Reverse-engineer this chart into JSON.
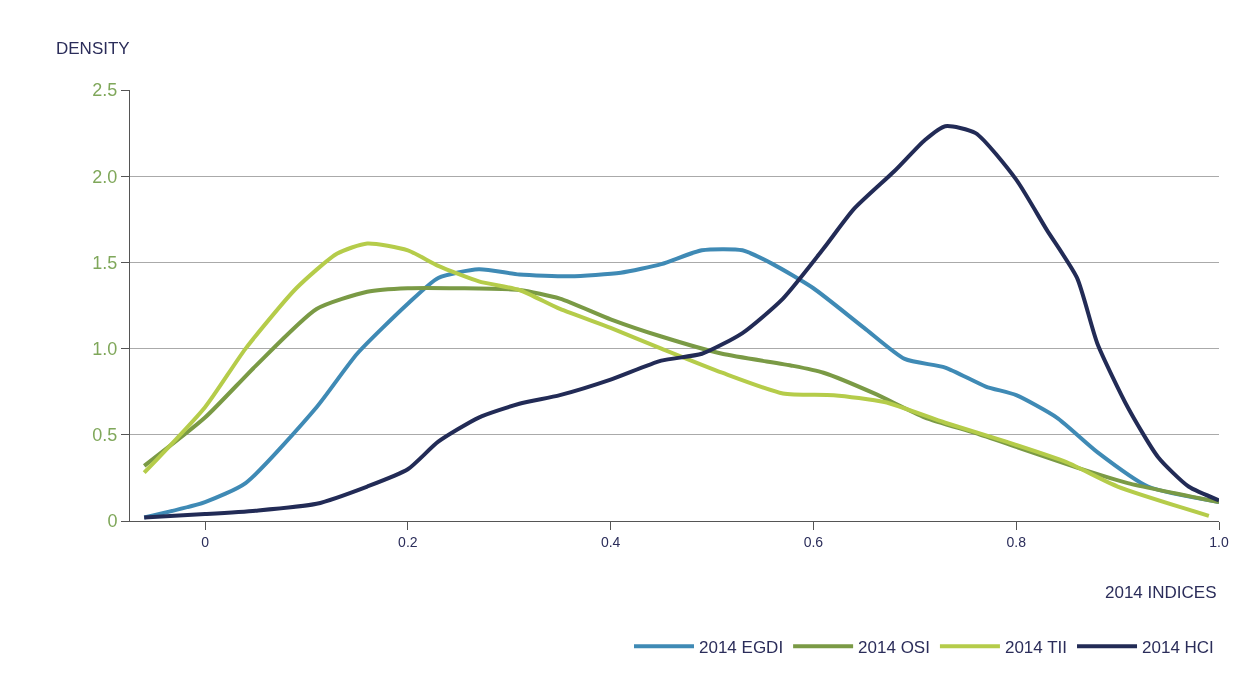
{
  "chart_data": {
    "type": "line",
    "xlabel": "2014 INDICES",
    "ylabel": "DENSITY",
    "xlim": [
      -0.074,
      1.0
    ],
    "xticks": [
      0,
      0.2,
      0.4,
      0.6,
      0.8,
      {
        "value": 1.0,
        "label": "1.0"
      }
    ],
    "ylim": [
      0,
      2.5
    ],
    "yticks": [
      0,
      0.5,
      {
        "value": 1.0,
        "label": "1.0"
      },
      1.5,
      {
        "value": 2.0,
        "label": "2.0"
      },
      2.5
    ],
    "grid": "y",
    "legend": "bottom right",
    "marker": "none",
    "line_style": "solid",
    "series": [
      {
        "name": "2014 EGDI",
        "color": "#3f8ab5",
        "x": [
          -0.06,
          0,
          0.04,
          0.11,
          0.15,
          0.2,
          0.23,
          0.27,
          0.31,
          0.36,
          0.41,
          0.45,
          0.49,
          0.53,
          0.56,
          0.6,
          0.65,
          0.69,
          0.73,
          0.77,
          0.8,
          0.84,
          0.88,
          0.93,
          1.0
        ],
        "values": [
          0.02,
          0.11,
          0.22,
          0.66,
          0.97,
          1.26,
          1.41,
          1.46,
          1.43,
          1.42,
          1.44,
          1.49,
          1.57,
          1.57,
          1.49,
          1.35,
          1.12,
          0.94,
          0.89,
          0.78,
          0.73,
          0.6,
          0.4,
          0.2,
          0.11
        ]
      },
      {
        "name": "2014 OSI",
        "color": "#7a9a45",
        "x": [
          -0.06,
          0,
          0.05,
          0.11,
          0.16,
          0.2,
          0.25,
          0.31,
          0.35,
          0.4,
          0.45,
          0.51,
          0.58,
          0.61,
          0.66,
          0.71,
          0.76,
          0.8,
          0.86,
          0.91,
          1.0
        ],
        "values": [
          0.32,
          0.6,
          0.9,
          1.23,
          1.33,
          1.35,
          1.35,
          1.34,
          1.29,
          1.17,
          1.07,
          0.97,
          0.9,
          0.86,
          0.74,
          0.6,
          0.51,
          0.43,
          0.31,
          0.22,
          0.11
        ]
      },
      {
        "name": "2014 TII",
        "color": "#b5cc4a",
        "x": [
          -0.06,
          0,
          0.04,
          0.09,
          0.13,
          0.16,
          0.2,
          0.23,
          0.27,
          0.31,
          0.35,
          0.4,
          0.45,
          0.51,
          0.57,
          0.62,
          0.67,
          0.73,
          0.79,
          0.85,
          0.9,
          0.99
        ],
        "values": [
          0.28,
          0.66,
          1.0,
          1.35,
          1.55,
          1.61,
          1.57,
          1.48,
          1.39,
          1.34,
          1.23,
          1.12,
          1.0,
          0.86,
          0.74,
          0.73,
          0.69,
          0.57,
          0.46,
          0.34,
          0.2,
          0.03
        ]
      },
      {
        "name": "2014 HCI",
        "color": "#222b56",
        "x": [
          -0.06,
          0,
          0.05,
          0.11,
          0.16,
          0.2,
          0.23,
          0.27,
          0.31,
          0.35,
          0.4,
          0.45,
          0.49,
          0.53,
          0.57,
          0.61,
          0.64,
          0.68,
          0.71,
          0.73,
          0.76,
          0.8,
          0.83,
          0.86,
          0.88,
          0.91,
          0.94,
          0.97,
          1.0
        ],
        "values": [
          0.02,
          0.04,
          0.06,
          0.1,
          0.2,
          0.3,
          0.46,
          0.6,
          0.68,
          0.73,
          0.82,
          0.93,
          0.97,
          1.09,
          1.29,
          1.58,
          1.81,
          2.03,
          2.21,
          2.29,
          2.25,
          1.98,
          1.69,
          1.41,
          1.03,
          0.66,
          0.37,
          0.2,
          0.12
        ]
      }
    ]
  }
}
